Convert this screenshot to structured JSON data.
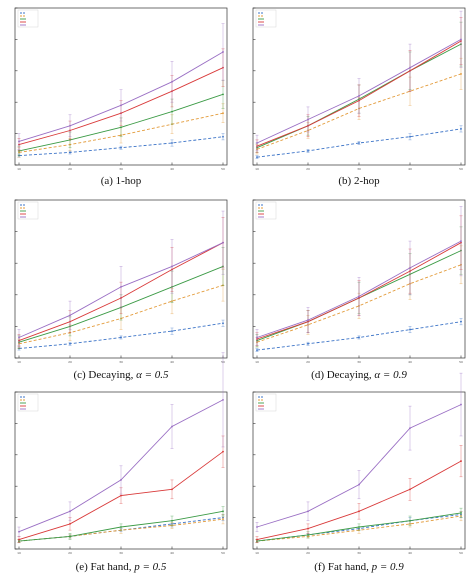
{
  "colors": {
    "series": [
      "#3b73c7",
      "#e39b3a",
      "#3c9b46",
      "#d93a3a",
      "#9a6fc4"
    ],
    "axis": "#333333",
    "tick": "#555555",
    "errorbar": "#888888"
  },
  "chart_data": [
    {
      "type": "line",
      "caption_label": "(a)",
      "caption_text": "1-hop",
      "x": [
        1,
        2,
        3,
        4,
        5
      ],
      "xticks": [
        "10",
        "20",
        "30",
        "40",
        "50"
      ],
      "ylim": [
        0,
        1.0
      ],
      "legend_position": "top-left",
      "series": [
        {
          "values": [
            0.06,
            0.08,
            0.11,
            0.14,
            0.18
          ],
          "err": [
            0.01,
            0.01,
            0.01,
            0.02,
            0.02
          ],
          "dash": true
        },
        {
          "values": [
            0.08,
            0.13,
            0.19,
            0.26,
            0.33
          ],
          "err": [
            0.03,
            0.04,
            0.05,
            0.06,
            0.06
          ],
          "dash": true
        },
        {
          "values": [
            0.09,
            0.16,
            0.24,
            0.34,
            0.45
          ],
          "err": [
            0.03,
            0.05,
            0.06,
            0.08,
            0.09
          ],
          "dash": false
        },
        {
          "values": [
            0.13,
            0.22,
            0.33,
            0.47,
            0.62
          ],
          "err": [
            0.04,
            0.06,
            0.08,
            0.1,
            0.12
          ],
          "dash": false
        },
        {
          "values": [
            0.15,
            0.25,
            0.38,
            0.53,
            0.72
          ],
          "err": [
            0.05,
            0.07,
            0.1,
            0.13,
            0.18
          ],
          "dash": false
        }
      ]
    },
    {
      "type": "line",
      "caption_label": "(b)",
      "caption_text": "2-hop",
      "x": [
        1,
        2,
        3,
        4,
        5
      ],
      "xticks": [
        "10",
        "20",
        "30",
        "40",
        "50"
      ],
      "ylim": [
        0,
        1.0
      ],
      "legend_position": "top-left",
      "series": [
        {
          "values": [
            0.05,
            0.09,
            0.14,
            0.18,
            0.23
          ],
          "err": [
            0.01,
            0.01,
            0.01,
            0.02,
            0.02
          ],
          "dash": true
        },
        {
          "values": [
            0.1,
            0.22,
            0.36,
            0.47,
            0.58
          ],
          "err": [
            0.03,
            0.05,
            0.07,
            0.09,
            0.1
          ],
          "dash": true
        },
        {
          "values": [
            0.11,
            0.25,
            0.42,
            0.6,
            0.77
          ],
          "err": [
            0.03,
            0.06,
            0.09,
            0.12,
            0.14
          ],
          "dash": false
        },
        {
          "values": [
            0.12,
            0.25,
            0.41,
            0.6,
            0.79
          ],
          "err": [
            0.04,
            0.07,
            0.1,
            0.13,
            0.15
          ],
          "dash": false
        },
        {
          "values": [
            0.14,
            0.29,
            0.44,
            0.62,
            0.8
          ],
          "err": [
            0.05,
            0.08,
            0.11,
            0.15,
            0.18
          ],
          "dash": false
        }
      ]
    },
    {
      "type": "line",
      "caption_label": "(c)",
      "caption_text": "Decaying, ",
      "caption_math": "α = 0.5",
      "x": [
        1,
        2,
        3,
        4,
        5
      ],
      "xticks": [
        "10",
        "20",
        "30",
        "40",
        "50"
      ],
      "ylim": [
        0,
        1.0
      ],
      "legend_position": "top-left",
      "series": [
        {
          "values": [
            0.06,
            0.09,
            0.13,
            0.17,
            0.22
          ],
          "err": [
            0.01,
            0.01,
            0.01,
            0.02,
            0.02
          ],
          "dash": true
        },
        {
          "values": [
            0.09,
            0.16,
            0.25,
            0.36,
            0.46
          ],
          "err": [
            0.03,
            0.05,
            0.07,
            0.08,
            0.1
          ],
          "dash": true
        },
        {
          "values": [
            0.1,
            0.2,
            0.32,
            0.45,
            0.58
          ],
          "err": [
            0.04,
            0.06,
            0.08,
            0.1,
            0.12
          ],
          "dash": false
        },
        {
          "values": [
            0.11,
            0.23,
            0.38,
            0.56,
            0.73
          ],
          "err": [
            0.04,
            0.07,
            0.1,
            0.14,
            0.16
          ],
          "dash": false
        },
        {
          "values": [
            0.13,
            0.27,
            0.45,
            0.58,
            0.73
          ],
          "err": [
            0.05,
            0.09,
            0.13,
            0.17,
            0.2
          ],
          "dash": false
        }
      ]
    },
    {
      "type": "line",
      "caption_label": "(d)",
      "caption_text": "Decaying, ",
      "caption_math": "α = 0.9",
      "x": [
        1,
        2,
        3,
        4,
        5
      ],
      "xticks": [
        "10",
        "20",
        "30",
        "40",
        "50"
      ],
      "ylim": [
        0,
        1.0
      ],
      "legend_position": "top-left",
      "series": [
        {
          "values": [
            0.05,
            0.09,
            0.13,
            0.18,
            0.23
          ],
          "err": [
            0.01,
            0.01,
            0.01,
            0.02,
            0.02
          ],
          "dash": true
        },
        {
          "values": [
            0.1,
            0.21,
            0.33,
            0.47,
            0.59
          ],
          "err": [
            0.03,
            0.06,
            0.08,
            0.1,
            0.12
          ],
          "dash": true
        },
        {
          "values": [
            0.11,
            0.23,
            0.38,
            0.53,
            0.68
          ],
          "err": [
            0.04,
            0.07,
            0.1,
            0.13,
            0.15
          ],
          "dash": false
        },
        {
          "values": [
            0.12,
            0.23,
            0.38,
            0.55,
            0.73
          ],
          "err": [
            0.04,
            0.07,
            0.11,
            0.14,
            0.17
          ],
          "dash": false
        },
        {
          "values": [
            0.13,
            0.24,
            0.39,
            0.57,
            0.74
          ],
          "err": [
            0.05,
            0.08,
            0.12,
            0.17,
            0.22
          ],
          "dash": false
        }
      ]
    },
    {
      "type": "line",
      "caption_label": "(e)",
      "caption_text": "Fat hand, ",
      "caption_math": "p = 0.5",
      "x": [
        1,
        2,
        3,
        4,
        5
      ],
      "xticks": [
        "10",
        "20",
        "30",
        "40",
        "50"
      ],
      "ylim": [
        0,
        1.0
      ],
      "legend_position": "top-left",
      "series": [
        {
          "values": [
            0.05,
            0.08,
            0.12,
            0.16,
            0.2
          ],
          "err": [
            0.01,
            0.01,
            0.01,
            0.02,
            0.02
          ],
          "dash": true
        },
        {
          "values": [
            0.05,
            0.08,
            0.12,
            0.15,
            0.19
          ],
          "err": [
            0.01,
            0.01,
            0.02,
            0.02,
            0.03
          ],
          "dash": true
        },
        {
          "values": [
            0.05,
            0.08,
            0.14,
            0.18,
            0.24
          ],
          "err": [
            0.01,
            0.02,
            0.02,
            0.03,
            0.03
          ],
          "dash": false
        },
        {
          "values": [
            0.06,
            0.16,
            0.34,
            0.38,
            0.62
          ],
          "err": [
            0.02,
            0.04,
            0.05,
            0.06,
            0.1
          ],
          "dash": false
        },
        {
          "values": [
            0.11,
            0.24,
            0.44,
            0.78,
            0.95
          ],
          "err": [
            0.03,
            0.06,
            0.09,
            0.14,
            0.3
          ],
          "dash": false
        }
      ]
    },
    {
      "type": "line",
      "caption_label": "(f)",
      "caption_text": "Fat hand, ",
      "caption_math": "p = 0.9",
      "x": [
        1,
        2,
        3,
        4,
        5
      ],
      "xticks": [
        "10",
        "20",
        "30",
        "40",
        "50"
      ],
      "ylim": [
        0,
        1.0
      ],
      "legend_position": "top-left",
      "series": [
        {
          "values": [
            0.05,
            0.09,
            0.13,
            0.18,
            0.22
          ],
          "err": [
            0.01,
            0.01,
            0.01,
            0.02,
            0.02
          ],
          "dash": true
        },
        {
          "values": [
            0.05,
            0.08,
            0.12,
            0.16,
            0.21
          ],
          "err": [
            0.01,
            0.01,
            0.02,
            0.02,
            0.03
          ],
          "dash": true
        },
        {
          "values": [
            0.05,
            0.09,
            0.14,
            0.18,
            0.23
          ],
          "err": [
            0.01,
            0.02,
            0.02,
            0.03,
            0.03
          ],
          "dash": false
        },
        {
          "values": [
            0.06,
            0.13,
            0.24,
            0.38,
            0.56
          ],
          "err": [
            0.02,
            0.03,
            0.05,
            0.07,
            0.1
          ],
          "dash": false
        },
        {
          "values": [
            0.14,
            0.24,
            0.41,
            0.77,
            0.92
          ],
          "err": [
            0.03,
            0.06,
            0.09,
            0.14,
            0.2
          ],
          "dash": false
        }
      ]
    }
  ]
}
